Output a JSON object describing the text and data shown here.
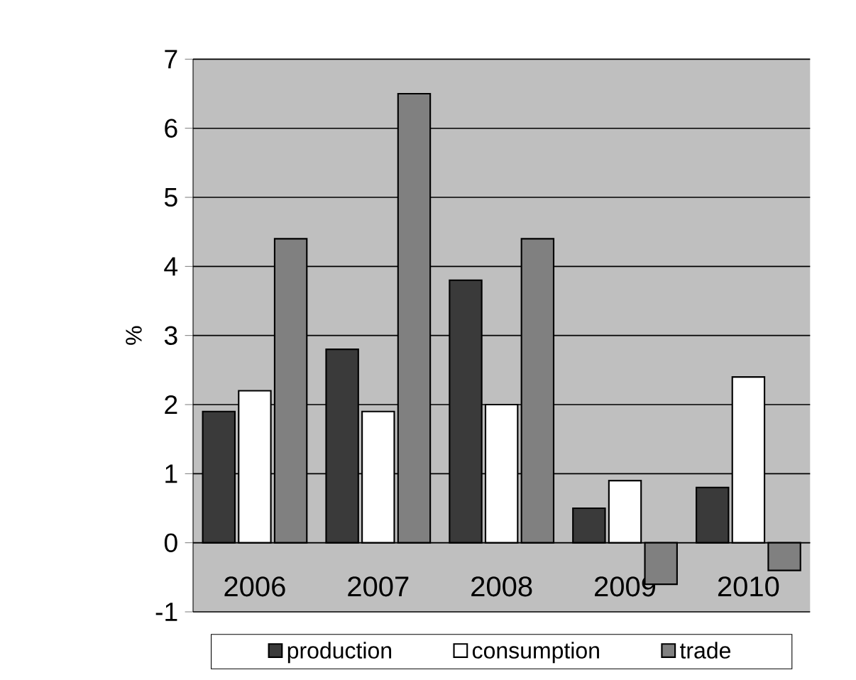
{
  "chart_data": {
    "type": "bar",
    "ylabel": "%",
    "categories": [
      "2006",
      "2007",
      "2008",
      "2009",
      "2010"
    ],
    "series": [
      {
        "name": "production",
        "color": "#3a3a3a",
        "values": [
          1.9,
          2.8,
          3.8,
          0.5,
          0.8
        ]
      },
      {
        "name": "consumption",
        "color": "#ffffff",
        "values": [
          2.2,
          1.9,
          2.0,
          0.9,
          2.4
        ]
      },
      {
        "name": "trade",
        "color": "#808080",
        "values": [
          4.4,
          6.5,
          4.4,
          -0.6,
          -0.4
        ]
      }
    ],
    "ylim": [
      -1,
      7
    ],
    "yticks": [
      -1,
      0,
      1,
      2,
      3,
      4,
      5,
      6,
      7
    ],
    "grid": "y",
    "legend": "bottom"
  }
}
